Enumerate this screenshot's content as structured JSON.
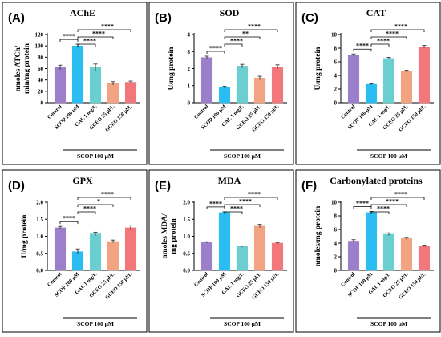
{
  "chart_data": [
    {
      "type": "bar",
      "panel": "(A)",
      "title": "AChE",
      "ylabel": [
        "nmoles ATCh/",
        "min/mg protein"
      ],
      "ylim": [
        0,
        120
      ],
      "yticks": [
        "0",
        "20",
        "40",
        "60",
        "80",
        "100",
        "120"
      ],
      "categories": [
        "Control",
        "SCOP 100 μM",
        "GAL 1 mg/L",
        "GCEO 25 μl/L",
        "GCEO 150 μl/L"
      ],
      "values": [
        62,
        100,
        62,
        34,
        36
      ],
      "errors": [
        4,
        3,
        6,
        3,
        2
      ],
      "significance": [
        {
          "from": 0,
          "to": 1,
          "label": "****"
        },
        {
          "from": 1,
          "to": 2,
          "label": "****"
        },
        {
          "from": 1,
          "to": 3,
          "label": "****"
        },
        {
          "from": 1,
          "to": 4,
          "label": "****"
        }
      ],
      "group_label": "SCOP 100 μM"
    },
    {
      "type": "bar",
      "panel": "(B)",
      "title": "SOD",
      "ylabel": [
        "U/mg protein"
      ],
      "ylim": [
        0,
        4
      ],
      "yticks": [
        "0",
        "1",
        "2",
        "3",
        "4"
      ],
      "categories": [
        "Control",
        "SCOP 100 μM",
        "GAL 1 mg/L",
        "GCEO 25 μl/L",
        "GCEO 150 μl/L"
      ],
      "values": [
        2.65,
        0.9,
        2.15,
        1.45,
        2.1
      ],
      "errors": [
        0.08,
        0.06,
        0.1,
        0.1,
        0.12
      ],
      "significance": [
        {
          "from": 0,
          "to": 1,
          "label": "****"
        },
        {
          "from": 1,
          "to": 2,
          "label": "****"
        },
        {
          "from": 1,
          "to": 3,
          "label": "**"
        },
        {
          "from": 1,
          "to": 4,
          "label": "****"
        }
      ],
      "group_label": "SCOP 100 μM"
    },
    {
      "type": "bar",
      "panel": "(C)",
      "title": "CAT",
      "ylabel": [
        "U/mg protein"
      ],
      "ylim": [
        0,
        10
      ],
      "yticks": [
        "0",
        "2",
        "4",
        "6",
        "8",
        "10"
      ],
      "categories": [
        "Control",
        "SCOP 100 μM",
        "GAL 1 mg/L",
        "GCEO 25 μl/L",
        "GCEO 150 μl/L"
      ],
      "values": [
        7.0,
        2.7,
        6.5,
        4.6,
        8.2
      ],
      "errors": [
        0.15,
        0.08,
        0.15,
        0.15,
        0.2
      ],
      "significance": [
        {
          "from": 0,
          "to": 1,
          "label": "****"
        },
        {
          "from": 1,
          "to": 2,
          "label": "****"
        },
        {
          "from": 1,
          "to": 3,
          "label": "****"
        },
        {
          "from": 1,
          "to": 4,
          "label": "****"
        }
      ],
      "group_label": "SCOP 100 μM"
    },
    {
      "type": "bar",
      "panel": "(D)",
      "title": "GPX",
      "ylabel": [
        "U/mg protein"
      ],
      "ylim": [
        0,
        2.0
      ],
      "yticks": [
        "0.0",
        "0.5",
        "1.0",
        "1.5",
        "2.0"
      ],
      "categories": [
        "Control",
        "SCOP 100 μM",
        "GAL 1 mg/L",
        "GCEO 25 μl/L",
        "GCEO 150 μl/L"
      ],
      "values": [
        1.25,
        0.55,
        1.07,
        0.85,
        1.25
      ],
      "errors": [
        0.04,
        0.08,
        0.05,
        0.04,
        0.08
      ],
      "significance": [
        {
          "from": 0,
          "to": 1,
          "label": "****"
        },
        {
          "from": 1,
          "to": 2,
          "label": "****"
        },
        {
          "from": 1,
          "to": 3,
          "label": "*"
        },
        {
          "from": 1,
          "to": 4,
          "label": "****"
        }
      ],
      "group_label": "SCOP 100 μM"
    },
    {
      "type": "bar",
      "panel": "(E)",
      "title": "MDA",
      "ylabel": [
        "nmoles MDA/",
        "mg protein"
      ],
      "ylim": [
        0,
        2.0
      ],
      "yticks": [
        "0.0",
        "0.5",
        "1.0",
        "1.5",
        "2.0"
      ],
      "categories": [
        "Control",
        "SCOP 100 μM",
        "GAL 1 mg/L",
        "GCEO 25 μl/L",
        "GCEO 150 μl/L"
      ],
      "values": [
        0.82,
        1.7,
        0.7,
        1.3,
        0.8
      ],
      "errors": [
        0.02,
        0.02,
        0.02,
        0.05,
        0.02
      ],
      "significance": [
        {
          "from": 0,
          "to": 1,
          "label": "****"
        },
        {
          "from": 1,
          "to": 2,
          "label": "****"
        },
        {
          "from": 1,
          "to": 3,
          "label": "****"
        },
        {
          "from": 1,
          "to": 4,
          "label": "****"
        }
      ],
      "group_label": "SCOP 100 μM"
    },
    {
      "type": "bar",
      "panel": "(F)",
      "title": "Carbonylated proteins",
      "ylabel": [
        "nmoles/mg protein"
      ],
      "ylim": [
        0,
        10
      ],
      "yticks": [
        "0",
        "2",
        "4",
        "6",
        "8",
        "10"
      ],
      "categories": [
        "Control",
        "SCOP 100 μM",
        "GAL 1 mg/L",
        "GCEO 25 μl/L",
        "GCEO 150 μl/L"
      ],
      "values": [
        4.3,
        8.5,
        5.3,
        4.7,
        3.6
      ],
      "errors": [
        0.2,
        0.15,
        0.2,
        0.15,
        0.1
      ],
      "significance": [
        {
          "from": 0,
          "to": 1,
          "label": "****"
        },
        {
          "from": 1,
          "to": 2,
          "label": "****"
        },
        {
          "from": 1,
          "to": 3,
          "label": "****"
        },
        {
          "from": 1,
          "to": 4,
          "label": "****"
        }
      ],
      "group_label": "SCOP 100 μM"
    }
  ],
  "colors": {
    "bars": [
      "#9b7fcb",
      "#29bdf2",
      "#6bcfd1",
      "#f2a381",
      "#f2777a"
    ],
    "frame": "#000000"
  }
}
